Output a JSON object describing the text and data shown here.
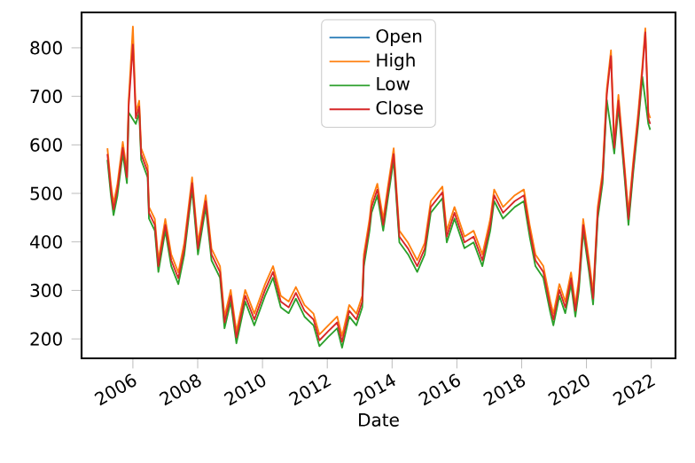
{
  "chart_data": {
    "type": "line",
    "xlabel": "Date",
    "x": [
      "2005-03-20",
      "2005-04-28",
      "2005-05-28",
      "2005-07-11",
      "2005-09-09",
      "2005-10-26",
      "2005-11-14",
      "2006-01-01",
      "2006-02-03",
      "2006-03-13",
      "2006-04-04",
      "2006-06-16",
      "2006-07-01",
      "2006-09-05",
      "2006-10-15",
      "2007-01-01",
      "2007-03-09",
      "2007-05-28",
      "2007-08-03",
      "2007-10-30",
      "2008-01-04",
      "2008-04-01",
      "2008-06-05",
      "2008-09-09",
      "2008-10-30",
      "2009-01-08",
      "2009-03-13",
      "2009-06-20",
      "2009-10-01",
      "2010-01-30",
      "2010-04-30",
      "2010-07-26",
      "2010-10-23",
      "2011-01-12",
      "2011-04-19",
      "2011-07-30",
      "2011-10-04",
      "2012-01-12",
      "2012-04-22",
      "2012-06-16",
      "2012-09-05",
      "2012-11-25",
      "2013-01-30",
      "2013-02-17",
      "2013-04-22",
      "2013-05-14",
      "2013-07-19",
      "2013-09-23",
      "2013-11-10",
      "2014-01-19",
      "2014-03-24",
      "2014-07-01",
      "2014-10-11",
      "2015-01-04",
      "2015-03-13",
      "2015-07-22",
      "2015-09-09",
      "2015-12-05",
      "2016-03-27",
      "2016-07-08",
      "2016-10-15",
      "2017-01-12",
      "2017-02-25",
      "2017-06-05",
      "2017-10-15",
      "2018-01-26",
      "2018-04-01",
      "2018-06-05",
      "2018-09-02",
      "2018-11-21",
      "2018-12-24",
      "2019-03-02",
      "2019-05-07",
      "2019-07-11",
      "2019-08-29",
      "2019-10-08",
      "2019-11-25",
      "2020-01-30",
      "2020-03-16",
      "2020-05-07",
      "2020-07-01",
      "2020-08-18",
      "2020-10-04",
      "2020-11-10",
      "2020-12-27",
      "2021-03-06",
      "2021-04-19",
      "2021-06-13",
      "2021-08-07",
      "2021-09-23",
      "2021-10-26",
      "2021-11-29",
      "2021-12-20"
    ],
    "series": [
      {
        "name": "Open",
        "color": "#1f77b4",
        "values": [
          null,
          null,
          null,
          null,
          null,
          null,
          null,
          null,
          null,
          null,
          null,
          null,
          null,
          null,
          null,
          null,
          null,
          null,
          null,
          null,
          null,
          null,
          null,
          null,
          null,
          null,
          null,
          null,
          null,
          null,
          null,
          null,
          null,
          null,
          null,
          null,
          null,
          null,
          null,
          null,
          null,
          null,
          null,
          null,
          null,
          null,
          null,
          null,
          null,
          null,
          null,
          null,
          null,
          null,
          null,
          null,
          null,
          null,
          null,
          null,
          null,
          null,
          null,
          null,
          null,
          null,
          null,
          null,
          null,
          null,
          null,
          null,
          null,
          null,
          null,
          null,
          null,
          null,
          null,
          null,
          null,
          null,
          null,
          null,
          null,
          null,
          null,
          null,
          null,
          null,
          null,
          null,
          null
        ]
      },
      {
        "name": "High",
        "color": "#ff7f0e",
        "values": [
          593,
          520,
          479,
          520,
          606,
          545,
          691,
          844,
          667,
          691,
          593,
          557,
          472,
          447,
          362,
          447,
          374,
          337,
          398,
          533,
          398,
          496,
          386,
          350,
          246,
          301,
          215,
          301,
          252,
          313,
          350,
          289,
          277,
          307,
          270,
          252,
          209,
          228,
          246,
          206,
          270,
          252,
          289,
          374,
          447,
          484,
          520,
          447,
          508,
          593,
          423,
          398,
          362,
          398,
          484,
          514,
          423,
          472,
          411,
          423,
          374,
          447,
          508,
          472,
          496,
          508,
          435,
          374,
          350,
          277,
          252,
          313,
          277,
          337,
          270,
          325,
          447,
          362,
          295,
          472,
          545,
          716,
          795,
          606,
          703,
          557,
          459,
          569,
          667,
          764,
          840,
          667,
          655
        ]
      },
      {
        "name": "Low",
        "color": "#2ca02c",
        "values": [
          569,
          496,
          455,
          496,
          582,
          521,
          667,
          null,
          643,
          667,
          569,
          533,
          448,
          423,
          338,
          423,
          350,
          313,
          374,
          509,
          374,
          472,
          362,
          326,
          222,
          277,
          191,
          277,
          228,
          289,
          326,
          265,
          253,
          283,
          246,
          228,
          185,
          204,
          222,
          182,
          246,
          228,
          265,
          350,
          423,
          460,
          496,
          423,
          484,
          569,
          399,
          374,
          338,
          374,
          460,
          490,
          399,
          448,
          387,
          399,
          350,
          423,
          484,
          448,
          472,
          484,
          411,
          350,
          326,
          253,
          228,
          289,
          253,
          313,
          246,
          301,
          423,
          338,
          271,
          448,
          521,
          692,
          null,
          582,
          679,
          533,
          435,
          545,
          643,
          740,
          null,
          643,
          631
        ]
      },
      {
        "name": "Close",
        "color": "#d62728",
        "values": [
          581,
          508,
          467,
          508,
          594,
          533,
          679,
          807,
          655,
          679,
          581,
          545,
          460,
          435,
          350,
          435,
          362,
          325,
          386,
          521,
          386,
          484,
          374,
          338,
          234,
          289,
          203,
          289,
          240,
          301,
          338,
          277,
          265,
          295,
          258,
          240,
          197,
          216,
          234,
          194,
          258,
          240,
          277,
          362,
          435,
          472,
          508,
          435,
          496,
          581,
          411,
          386,
          350,
          386,
          472,
          502,
          411,
          460,
          399,
          411,
          362,
          435,
          496,
          460,
          484,
          496,
          423,
          362,
          338,
          265,
          240,
          301,
          265,
          325,
          258,
          313,
          435,
          350,
          283,
          460,
          533,
          704,
          783,
          594,
          691,
          545,
          447,
          557,
          655,
          752,
          832,
          655,
          643
        ]
      }
    ],
    "xlim": [
      "2004-06",
      "2022-10"
    ],
    "ylim": [
      160,
      873
    ],
    "xticks": [
      "2006",
      "2008",
      "2010",
      "2012",
      "2014",
      "2016",
      "2018",
      "2020",
      "2022"
    ],
    "yticks": [
      200,
      300,
      400,
      500,
      600,
      700,
      800
    ],
    "grid": false,
    "legend": "top",
    "line_style": "solid",
    "marker": "none"
  }
}
